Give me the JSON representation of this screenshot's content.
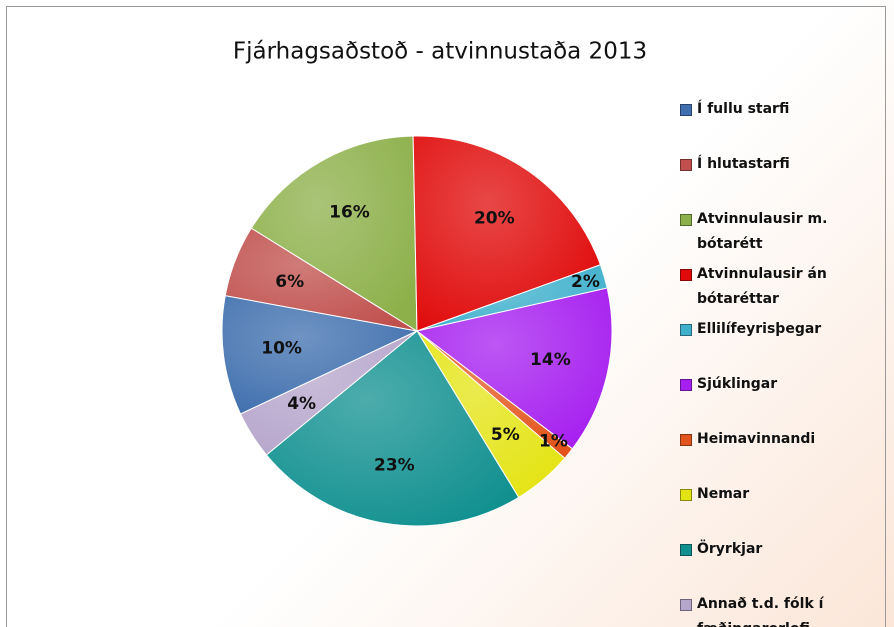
{
  "chart_data": {
    "type": "pie",
    "title": "Fjárhagsaðstoð - atvinnustaða 2013",
    "categories": [
      "Í fullu starfi",
      "Í hlutastarfi",
      "Atvinnulausir m. bótarétt",
      "Atvinnulausir án bótaréttar",
      "Ellilífeyrisþegar",
      "Sjúklingar",
      "Heimavinnandi",
      "Nemar",
      "Öryrkjar",
      "Annað t.d. fólk í fæðingarorlofi"
    ],
    "values": [
      10,
      6,
      16,
      20,
      2,
      14,
      1,
      5,
      23,
      4
    ],
    "value_labels": [
      "10%",
      "6%",
      "16%",
      "20%",
      "2%",
      "14%",
      "1%",
      "5%",
      "23%",
      "4%"
    ],
    "colors": [
      "#3f6fae",
      "#c0504d",
      "#8db04a",
      "#e00a0a",
      "#3fb0cc",
      "#a61ff0",
      "#e2541c",
      "#e4e414",
      "#119090",
      "#b6a6cc"
    ],
    "legend": "right"
  }
}
